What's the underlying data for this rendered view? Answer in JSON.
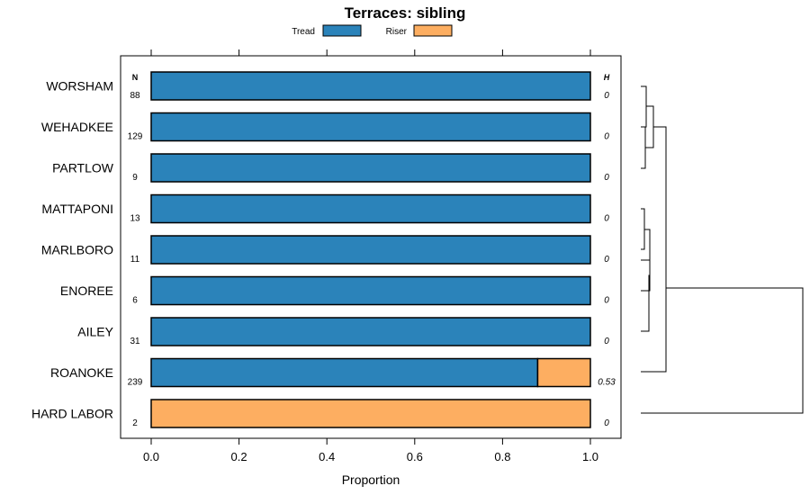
{
  "chart_data": {
    "type": "bar",
    "orientation": "horizontal",
    "stacked": true,
    "title": "Terraces: sibling",
    "xlabel": "Proportion",
    "xlim": [
      0,
      1
    ],
    "x_ticks": [
      "0.0",
      "0.2",
      "0.4",
      "0.6",
      "0.8",
      "1.0"
    ],
    "legend_position": "top",
    "n_header": "N",
    "h_header": "H",
    "categories": [
      "WORSHAM",
      "WEHADKEE",
      "PARTLOW",
      "MATTAPONI",
      "MARLBORO",
      "ENOREE",
      "AILEY",
      "ROANOKE",
      "HARD LABOR"
    ],
    "n": [
      "88",
      "129",
      "9",
      "13",
      "11",
      "6",
      "31",
      "239",
      "2"
    ],
    "h": [
      "0",
      "0",
      "0",
      "0",
      "0",
      "0",
      "0",
      "0.53",
      "0"
    ],
    "series": [
      {
        "name": "Tread",
        "color": "#2b83ba",
        "values": [
          1,
          1,
          1,
          1,
          1,
          1,
          1,
          0.88,
          0
        ]
      },
      {
        "name": "Riser",
        "color": "#fdae61",
        "values": [
          0,
          0,
          0,
          0,
          0,
          0,
          0,
          0.12,
          1
        ]
      }
    ],
    "dendrogram": "present"
  }
}
